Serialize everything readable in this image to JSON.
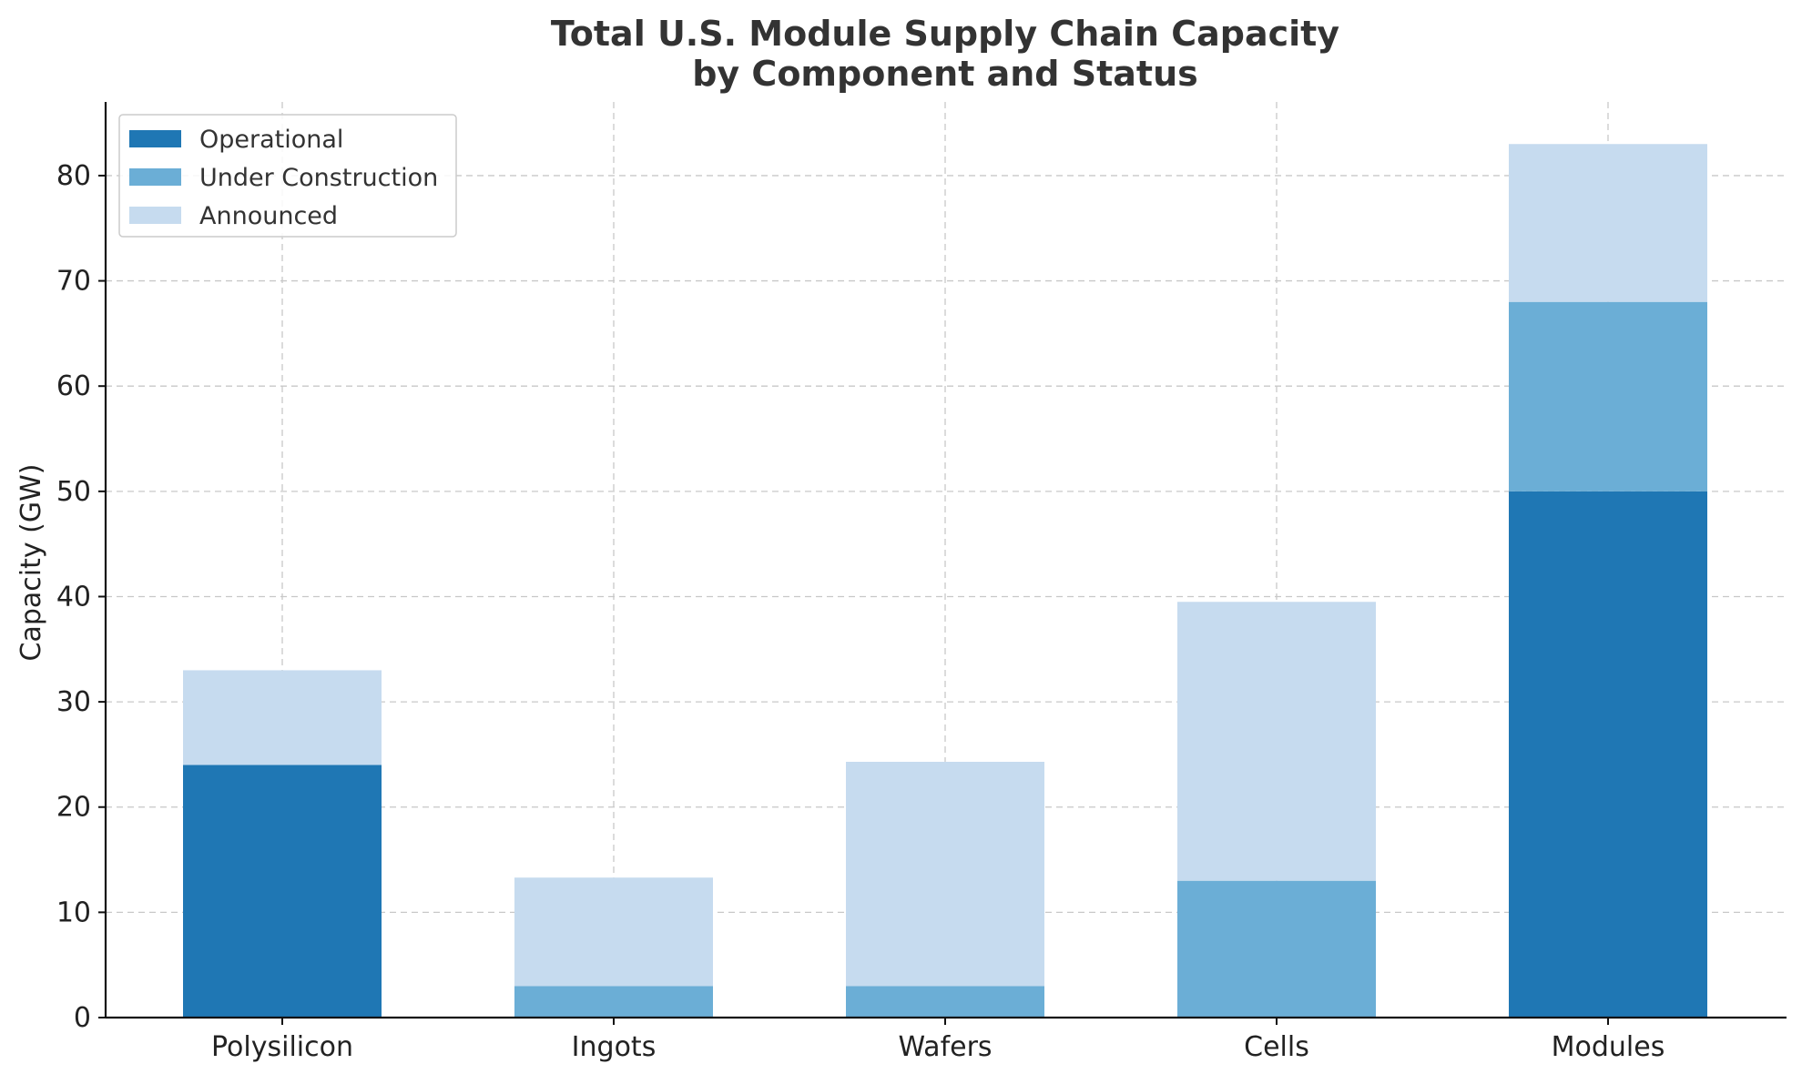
{
  "chart_data": {
    "type": "bar",
    "stacked": true,
    "title": [
      "Total U.S. Module Supply Chain Capacity",
      "by Component and Status"
    ],
    "xlabel": "",
    "ylabel": "Capacity (GW)",
    "ylim": [
      0,
      87
    ],
    "yticks": [
      0,
      10,
      20,
      30,
      40,
      50,
      60,
      70,
      80
    ],
    "categories": [
      "Polysilicon",
      "Ingots",
      "Wafers",
      "Cells",
      "Modules"
    ],
    "series": [
      {
        "name": "Operational",
        "color": "#1f77b4",
        "values": [
          24,
          0,
          0,
          0,
          50
        ]
      },
      {
        "name": "Under Construction",
        "color": "#6baed6",
        "values": [
          0,
          3,
          3,
          13,
          18
        ]
      },
      {
        "name": "Announced",
        "color": "#c6dbef",
        "values": [
          9,
          10.3,
          21.3,
          26.5,
          15
        ]
      }
    ],
    "grid": true,
    "legend": "top-left"
  }
}
